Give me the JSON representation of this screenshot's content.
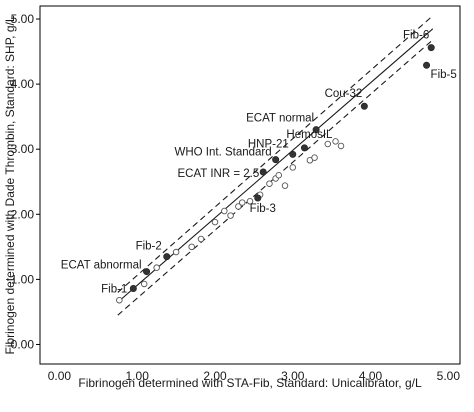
{
  "chart_data": {
    "type": "scatter",
    "xlabel": "Fibrinogen determined with STA-Fib, Standard: Unicalibrator, g/L",
    "ylabel": "Fibrinogen determined with Dade Thrombin, Standard: SHP, g/L",
    "xlim": [
      -0.25,
      5.15
    ],
    "ylim": [
      -0.3,
      5.2
    ],
    "x_ticks": [
      "0.00",
      "1.00",
      "2.00",
      "3.00",
      "4.00",
      "5.00"
    ],
    "y_ticks": [
      "0.00",
      "1.00",
      "2.00",
      "3.00",
      "4.00",
      "5.00"
    ],
    "x_tick_values": [
      0,
      1,
      2,
      3,
      4,
      5
    ],
    "y_tick_values": [
      0,
      1,
      2,
      3,
      4,
      5
    ],
    "grid": false,
    "regression_line": {
      "from": [
        0.75,
        0.65
      ],
      "to": [
        4.8,
        4.85
      ]
    },
    "upper_bound_line": {
      "from": [
        0.75,
        0.8
      ],
      "to": [
        4.8,
        5.05
      ]
    },
    "lower_bound_line": {
      "from": [
        0.75,
        0.45
      ],
      "to": [
        4.8,
        4.68
      ]
    },
    "labeled_points": [
      {
        "label": "Fib-6",
        "x": 4.78,
        "y": 4.56
      },
      {
        "label": "Fib-5",
        "x": 4.72,
        "y": 4.29
      },
      {
        "label": "Cou-32",
        "x": 3.92,
        "y": 3.66
      },
      {
        "label": "ECAT normal",
        "x": 3.3,
        "y": 3.3
      },
      {
        "label": "HemosIL",
        "x": 3.15,
        "y": 3.02
      },
      {
        "label": "HNP-21",
        "x": 3.0,
        "y": 2.92
      },
      {
        "label": "WHO Int. Standard",
        "x": 2.78,
        "y": 2.84
      },
      {
        "label": "ECAT INR = 2.5",
        "x": 2.62,
        "y": 2.65
      },
      {
        "label": "Fib-3",
        "x": 2.55,
        "y": 2.25
      },
      {
        "label": "Fib-2",
        "x": 1.38,
        "y": 1.35
      },
      {
        "label": "ECAT abnormal",
        "x": 1.12,
        "y": 1.12
      },
      {
        "label": "Fib-1",
        "x": 0.95,
        "y": 0.86
      }
    ],
    "open_points": [
      {
        "x": 0.77,
        "y": 0.68
      },
      {
        "x": 1.09,
        "y": 0.93
      },
      {
        "x": 1.25,
        "y": 1.18
      },
      {
        "x": 1.5,
        "y": 1.42
      },
      {
        "x": 1.7,
        "y": 1.5
      },
      {
        "x": 1.82,
        "y": 1.62
      },
      {
        "x": 2.0,
        "y": 1.88
      },
      {
        "x": 2.12,
        "y": 2.05
      },
      {
        "x": 2.2,
        "y": 1.98
      },
      {
        "x": 2.3,
        "y": 2.12
      },
      {
        "x": 2.35,
        "y": 2.18
      },
      {
        "x": 2.45,
        "y": 2.2
      },
      {
        "x": 2.58,
        "y": 2.3
      },
      {
        "x": 2.7,
        "y": 2.47
      },
      {
        "x": 2.78,
        "y": 2.55
      },
      {
        "x": 2.82,
        "y": 2.6
      },
      {
        "x": 2.9,
        "y": 2.44
      },
      {
        "x": 3.0,
        "y": 2.72
      },
      {
        "x": 3.22,
        "y": 2.83
      },
      {
        "x": 3.28,
        "y": 2.87
      },
      {
        "x": 3.45,
        "y": 3.08
      },
      {
        "x": 3.55,
        "y": 3.12
      },
      {
        "x": 3.62,
        "y": 3.05
      }
    ]
  }
}
